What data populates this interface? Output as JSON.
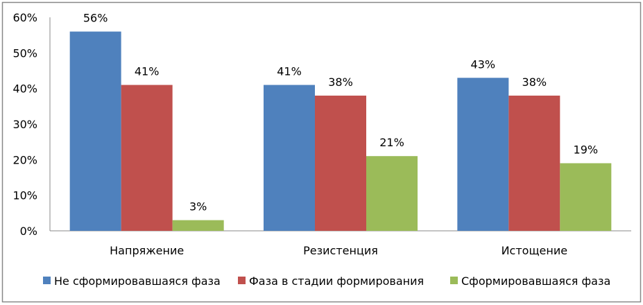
{
  "chart_data": {
    "type": "bar",
    "title": "",
    "xlabel": "",
    "ylabel": "",
    "ylim": [
      0,
      60
    ],
    "yticks": [
      "0%",
      "10%",
      "20%",
      "30%",
      "40%",
      "50%",
      "60%"
    ],
    "grid": false,
    "legend_position": "bottom",
    "categories": [
      "Напряжение",
      "Резистенция",
      "Истощение"
    ],
    "series": [
      {
        "name": "Не сформировавшаяся фаза",
        "color": "#4F81BD",
        "values": [
          56,
          41,
          43
        ],
        "labels": [
          "56%",
          "41%",
          "43%"
        ]
      },
      {
        "name": "Фаза в стадии формирования",
        "color": "#C0504D",
        "values": [
          41,
          38,
          38
        ],
        "labels": [
          "41%",
          "38%",
          "38%"
        ]
      },
      {
        "name": "Сформировавшаяся фаза",
        "color": "#9BBB59",
        "values": [
          3,
          21,
          19
        ],
        "labels": [
          "3%",
          "21%",
          "19%"
        ]
      }
    ]
  }
}
